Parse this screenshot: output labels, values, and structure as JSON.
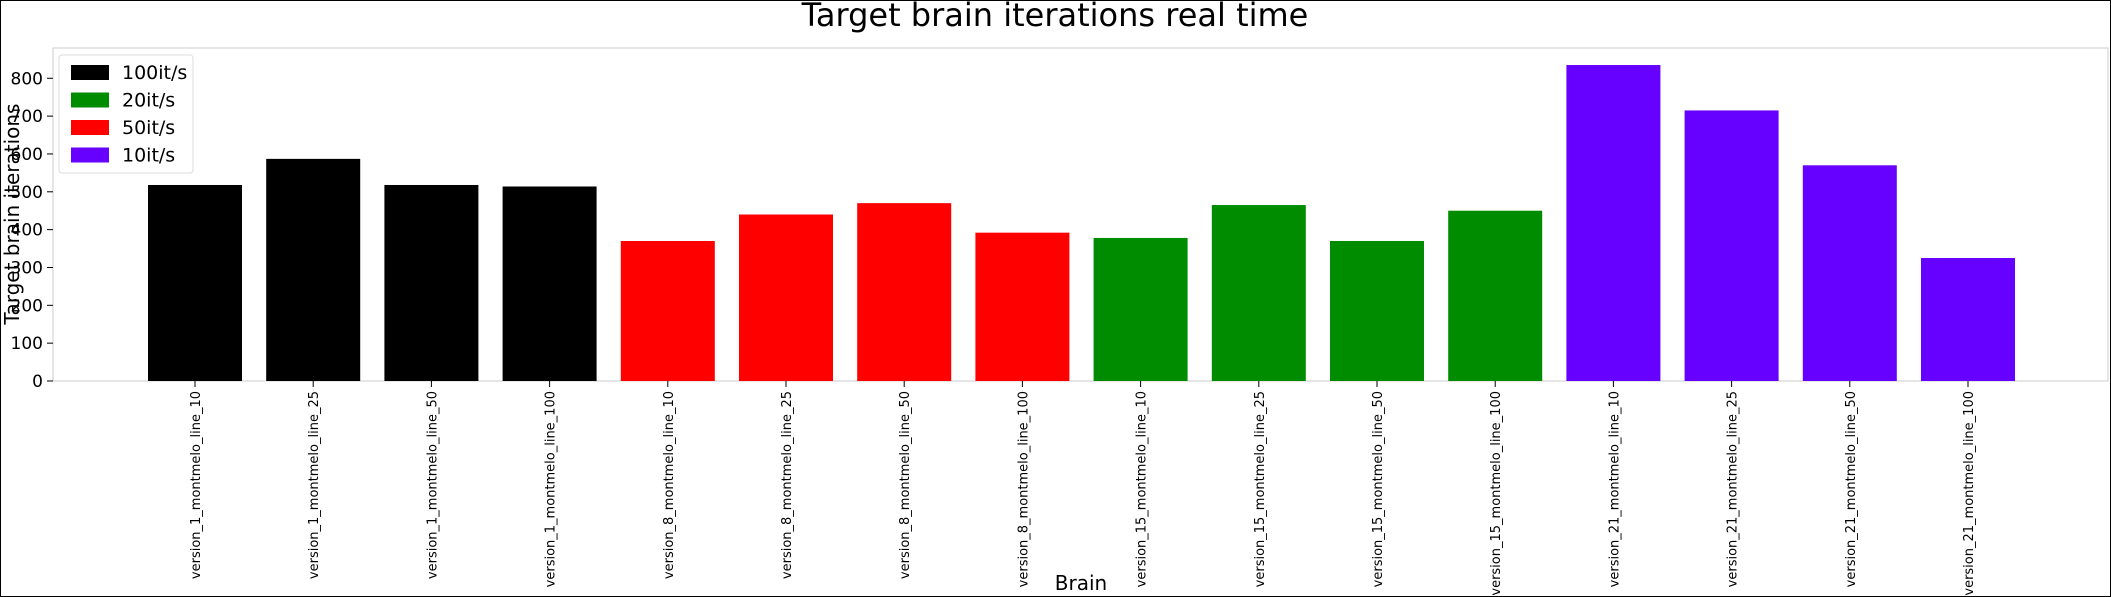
{
  "chart_data": {
    "type": "bar",
    "title": "Target brain iterations real time",
    "xlabel": "Brain",
    "ylabel": "Target brain iterations",
    "ylim": [
      0,
      880
    ],
    "yticks": [
      0,
      100,
      200,
      300,
      400,
      500,
      600,
      700,
      800
    ],
    "grid": false,
    "legend_position": "top-left",
    "legend": [
      {
        "label": "100it/s",
        "color": "#000000"
      },
      {
        "label": "20it/s",
        "color": "#008c00"
      },
      {
        "label": "50it/s",
        "color": "#ff0000"
      },
      {
        "label": "10it/s",
        "color": "#6600ff"
      }
    ],
    "categories": [
      "version_1_montmelo_line_10",
      "version_1_montmelo_line_25",
      "version_1_montmelo_line_50",
      "version_1_montmelo_line_100",
      "version_8_montmelo_line_10",
      "version_8_montmelo_line_25",
      "version_8_montmelo_line_50",
      "version_8_montmelo_line_100",
      "version_15_montmelo_line_10",
      "version_15_montmelo_line_25",
      "version_15_montmelo_line_50",
      "version_15_montmelo_line_100",
      "version_21_montmelo_line_10",
      "version_21_montmelo_line_25",
      "version_21_montmelo_line_50",
      "version_21_montmelo_line_100"
    ],
    "values": [
      518,
      587,
      518,
      514,
      370,
      440,
      470,
      392,
      378,
      465,
      370,
      450,
      835,
      715,
      570,
      325
    ],
    "bar_groups": [
      "100it/s",
      "100it/s",
      "100it/s",
      "100it/s",
      "50it/s",
      "50it/s",
      "50it/s",
      "50it/s",
      "20it/s",
      "20it/s",
      "20it/s",
      "20it/s",
      "10it/s",
      "10it/s",
      "10it/s",
      "10it/s"
    ],
    "bar_colors": [
      "#000000",
      "#000000",
      "#000000",
      "#000000",
      "#ff0000",
      "#ff0000",
      "#ff0000",
      "#ff0000",
      "#008c00",
      "#008c00",
      "#008c00",
      "#008c00",
      "#6600ff",
      "#6600ff",
      "#6600ff",
      "#6600ff"
    ]
  }
}
